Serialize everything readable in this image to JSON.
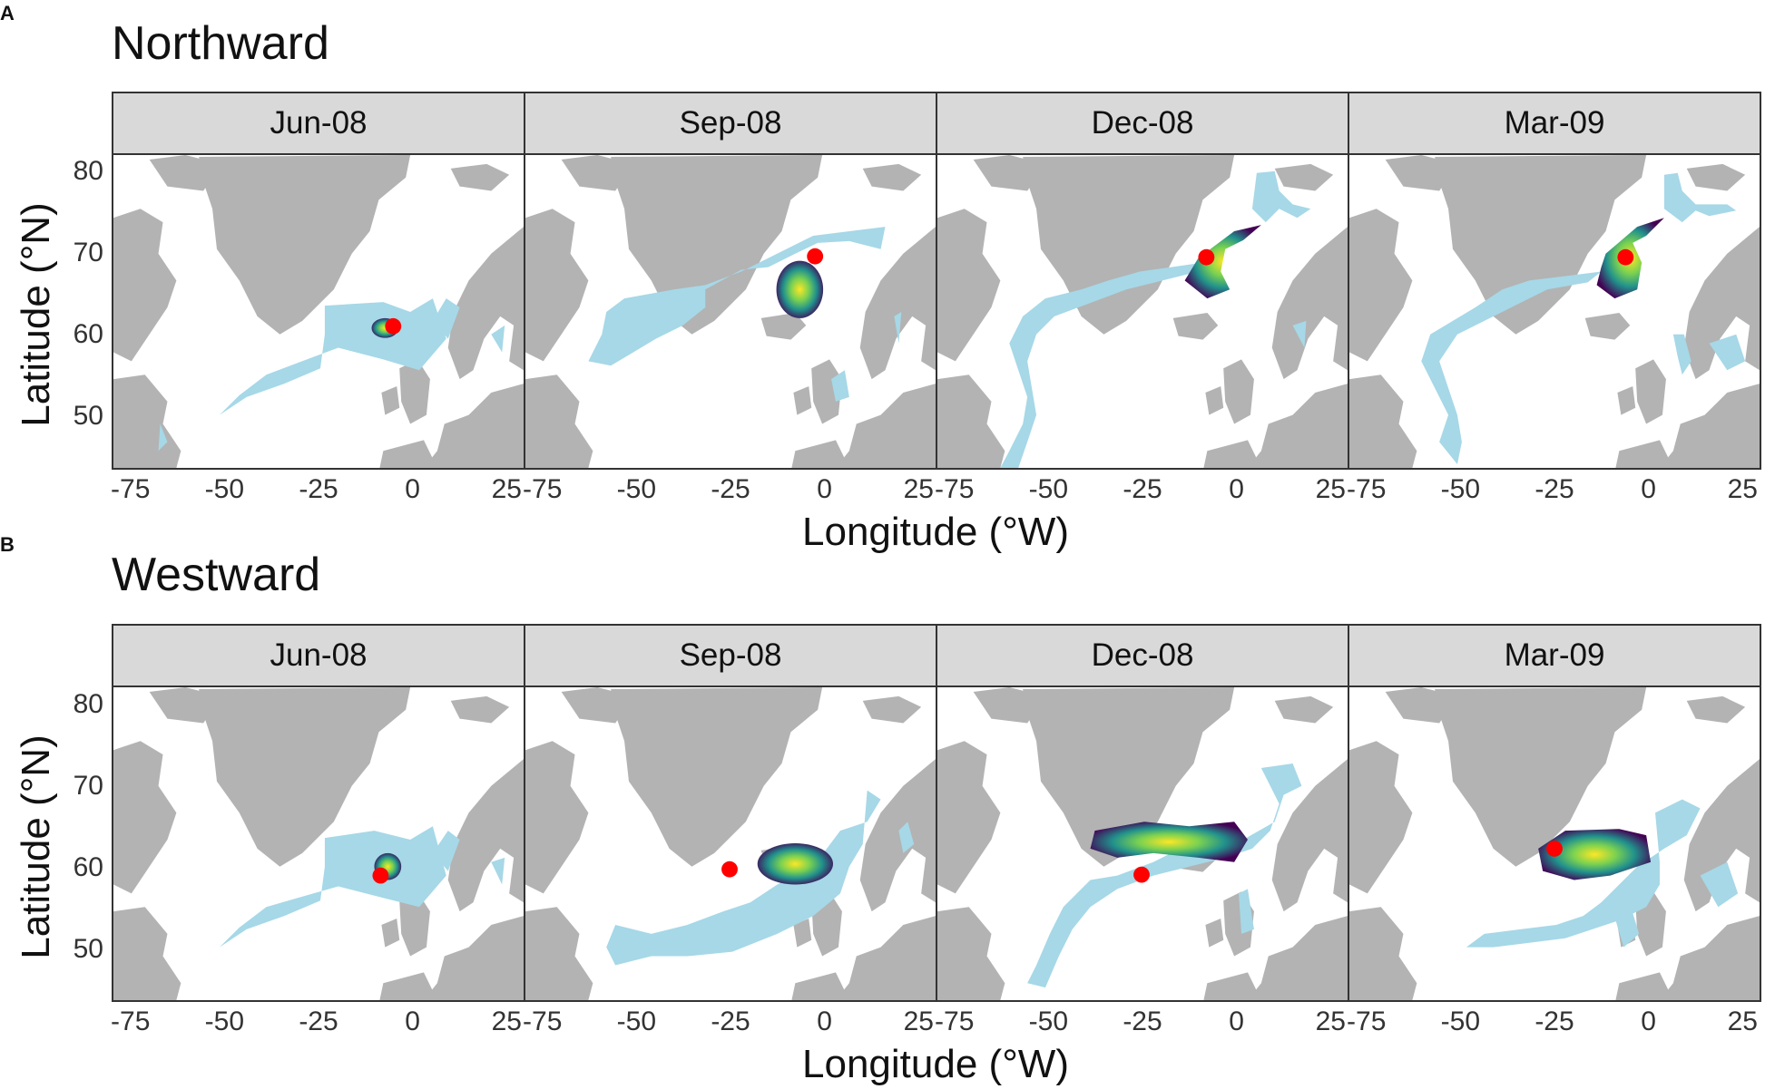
{
  "sections": [
    {
      "letter": "A",
      "title": "Northward",
      "facets": [
        "Jun-08",
        "Sep-08",
        "Dec-08",
        "Mar-09"
      ],
      "xlabel": "Longitude (°W)",
      "ylabel": "Latitude (°N)"
    },
    {
      "letter": "B",
      "title": "Westward",
      "facets": [
        "Jun-08",
        "Sep-08",
        "Dec-08",
        "Mar-09"
      ],
      "xlabel": "Longitude (°W)",
      "ylabel": "Latitude (°N)"
    }
  ],
  "x_ticks": [
    "-75",
    "-50",
    "-25",
    "0",
    "25"
  ],
  "y_ticks": [
    "80",
    "70",
    "60",
    "50"
  ],
  "colors": {
    "land": "#b3b3b3",
    "ocean": "#ffffff",
    "range": "#a6d8e7",
    "release_point": "#ff0000",
    "density_low": "#440154",
    "density_mid": "#21918c",
    "density_high": "#fde725",
    "strip": "#d9d9d9"
  },
  "map_data": {
    "type": "faceted-map",
    "xlim": [
      -80,
      30
    ],
    "ylim": [
      43,
      82
    ],
    "release_points": {
      "Northward": [
        {
          "facet": "Jun-08",
          "lon": -4,
          "lat": 61
        },
        {
          "facet": "Sep-08",
          "lon": -2,
          "lat": 69.5
        },
        {
          "facet": "Dec-08",
          "lon": -8,
          "lat": 69.5
        },
        {
          "facet": "Mar-09",
          "lon": -6,
          "lat": 69.5
        }
      ],
      "Westward": [
        {
          "facet": "Jun-08",
          "lon": -8,
          "lat": 59
        },
        {
          "facet": "Sep-08",
          "lon": -25,
          "lat": 59.5
        },
        {
          "facet": "Dec-08",
          "lon": -25,
          "lat": 59
        },
        {
          "facet": "Mar-09",
          "lon": -25,
          "lat": 62
        }
      ]
    }
  }
}
